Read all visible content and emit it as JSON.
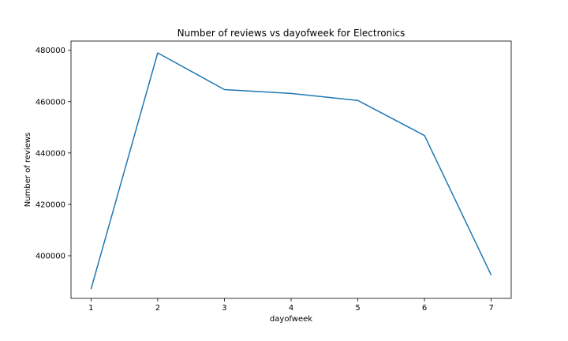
{
  "chart_data": {
    "type": "line",
    "title": "Number of reviews vs dayofweek for Electronics",
    "xlabel": "dayofweek",
    "ylabel": "Number of reviews",
    "x": [
      1,
      2,
      3,
      4,
      5,
      6,
      7
    ],
    "series": [
      {
        "values": [
          387000,
          479000,
          464700,
          463200,
          460500,
          446800,
          392500
        ]
      }
    ],
    "xticks": [
      1,
      2,
      3,
      4,
      5,
      6,
      7
    ],
    "yticks": [
      400000,
      420000,
      440000,
      460000,
      480000
    ],
    "xlim": [
      0.7,
      7.3
    ],
    "ylim": [
      383400,
      483600
    ],
    "grid": false,
    "legend": "none",
    "colors": {
      "line": "#1f77b4",
      "axis": "#000000"
    }
  }
}
